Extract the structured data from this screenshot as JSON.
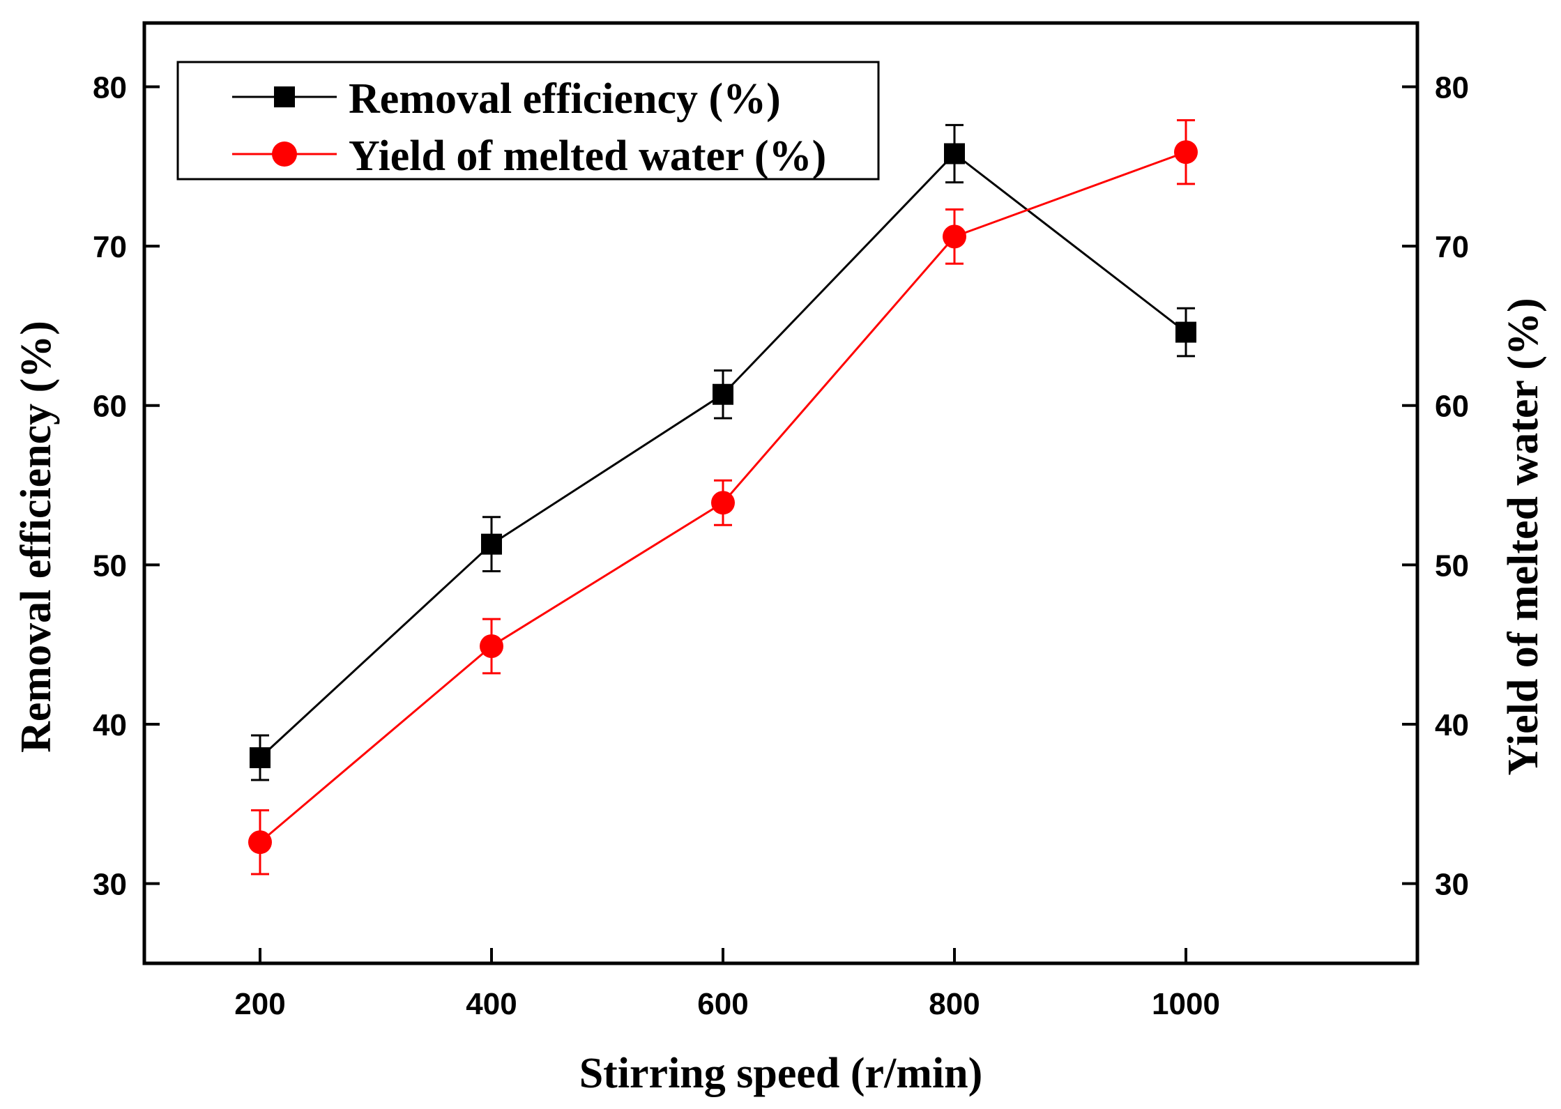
{
  "chart_data": {
    "type": "line",
    "title": "",
    "xlabel": "Stirring speed (r/min)",
    "ylabel_left": "Removal efficiency (%)",
    "ylabel_right": "Yield of melted water (%)",
    "xlim": [
      100,
      1200
    ],
    "ylim": [
      25,
      84
    ],
    "xticks": [
      200,
      400,
      600,
      800,
      1000
    ],
    "yticks": [
      30,
      40,
      50,
      60,
      70,
      80
    ],
    "legend_position": "top-left",
    "grid": false,
    "series": [
      {
        "name": "Removal efficiency (%)",
        "color": "#000000",
        "marker": "square",
        "axis": "left",
        "x": [
          200,
          400,
          600,
          800,
          1000
        ],
        "values": [
          37.9,
          51.3,
          60.7,
          75.8,
          64.6
        ],
        "error": [
          1.4,
          1.7,
          1.5,
          1.8,
          1.5
        ]
      },
      {
        "name": "Yield of melted water (%)",
        "color": "#ff0000",
        "marker": "circle",
        "axis": "right",
        "x": [
          200,
          400,
          600,
          800,
          1000
        ],
        "values": [
          32.6,
          44.9,
          53.9,
          70.6,
          75.9
        ],
        "error": [
          2.0,
          1.7,
          1.4,
          1.7,
          2.0
        ]
      }
    ]
  }
}
